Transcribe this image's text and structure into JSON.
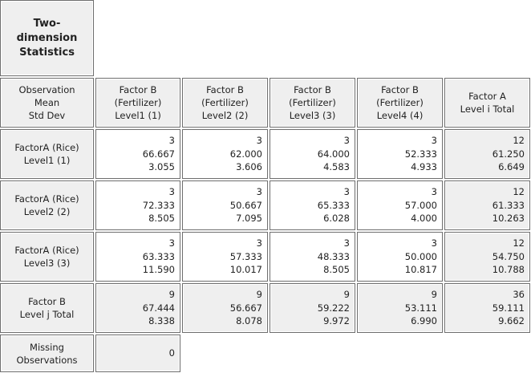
{
  "title_lines": [
    "Two-",
    "dimension",
    "Statistics"
  ],
  "stat_header_lines": [
    "Observation",
    "Mean",
    "Std Dev"
  ],
  "col_headers": [
    [
      "Factor B",
      "(Fertilizer)",
      "Level1 (1)"
    ],
    [
      "Factor B",
      "(Fertilizer)",
      "Level2 (2)"
    ],
    [
      "Factor B",
      "(Fertilizer)",
      "Level3 (3)"
    ],
    [
      "Factor B",
      "(Fertilizer)",
      "Level4 (4)"
    ],
    [
      "Factor A",
      "Level i Total"
    ]
  ],
  "row_headers": [
    [
      "FactorA (Rice)",
      "Level1 (1)"
    ],
    [
      "FactorA (Rice)",
      "Level2 (2)"
    ],
    [
      "FactorA (Rice)",
      "Level3 (3)"
    ],
    [
      "Factor B",
      "Level j Total"
    ]
  ],
  "rows": [
    [
      [
        "3",
        "66.667",
        "3.055"
      ],
      [
        "3",
        "62.000",
        "3.606"
      ],
      [
        "3",
        "64.000",
        "4.583"
      ],
      [
        "3",
        "52.333",
        "4.933"
      ],
      [
        "12",
        "61.250",
        "6.649"
      ]
    ],
    [
      [
        "3",
        "72.333",
        "8.505"
      ],
      [
        "3",
        "50.667",
        "7.095"
      ],
      [
        "3",
        "65.333",
        "6.028"
      ],
      [
        "3",
        "57.000",
        "4.000"
      ],
      [
        "12",
        "61.333",
        "10.263"
      ]
    ],
    [
      [
        "3",
        "63.333",
        "11.590"
      ],
      [
        "3",
        "57.333",
        "10.017"
      ],
      [
        "3",
        "48.333",
        "8.505"
      ],
      [
        "3",
        "50.000",
        "10.817"
      ],
      [
        "12",
        "54.750",
        "10.788"
      ]
    ],
    [
      [
        "9",
        "67.444",
        "8.338"
      ],
      [
        "9",
        "56.667",
        "8.078"
      ],
      [
        "9",
        "59.222",
        "9.972"
      ],
      [
        "9",
        "53.111",
        "6.990"
      ],
      [
        "36",
        "59.111",
        "9.662"
      ]
    ]
  ],
  "missing": {
    "label_lines": [
      "Missing",
      "Observations"
    ],
    "value": "0"
  }
}
